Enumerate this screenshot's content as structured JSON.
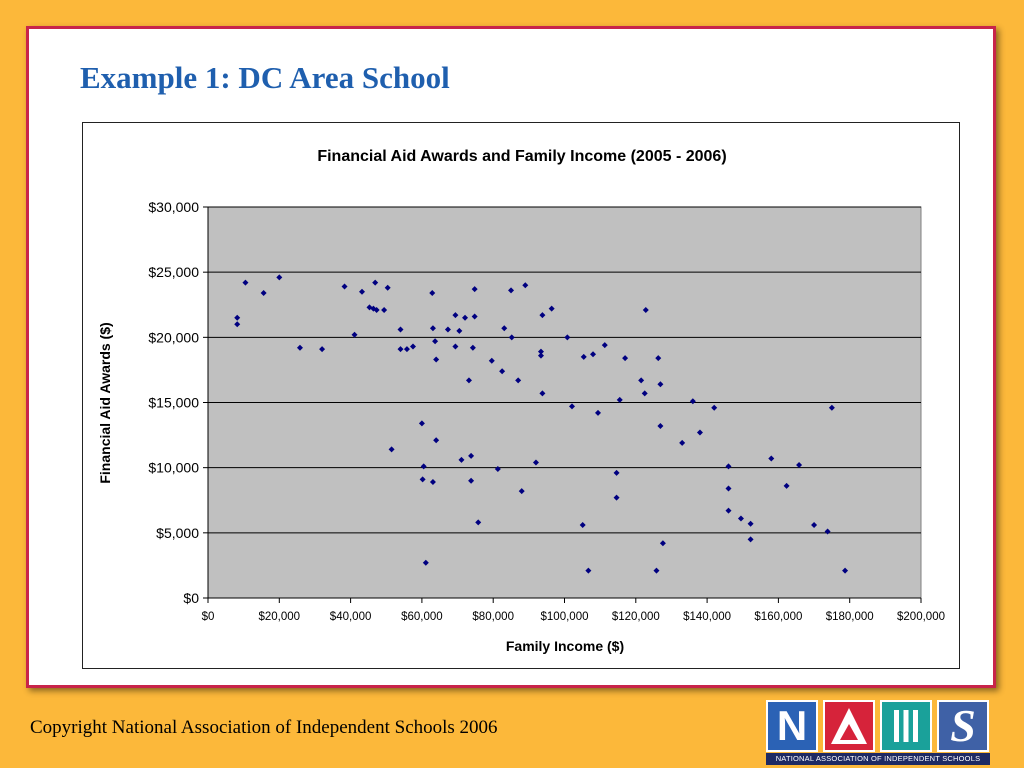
{
  "slide": {
    "title": "Example 1:  DC Area School",
    "footer": "Copyright National Association of Independent Schools 2006"
  },
  "logo": {
    "letters": [
      "N",
      "A",
      "I",
      "S"
    ],
    "tagline": "NATIONAL ASSOCIATION OF INDEPENDENT SCHOOLS",
    "colors": {
      "navy": "#1e2a63",
      "blue": "#2b62b5",
      "red": "#d6233a",
      "teal": "#1aa19a",
      "slate": "#3f61a6"
    }
  },
  "colors": {
    "background": "#fcb83a",
    "frame_border": "#c8244a",
    "title": "#1f5fae",
    "plot_area": "#c0c0c0",
    "marker": "#000080"
  },
  "chart_data": {
    "type": "scatter",
    "title": "Financial Aid Awards and Family Income (2005 - 2006)",
    "xlabel": "Family Income ($)",
    "ylabel": "Financial Aid Awards ($)",
    "xlim": [
      0,
      200000
    ],
    "ylim": [
      0,
      30000
    ],
    "x_ticks": [
      0,
      20000,
      40000,
      60000,
      80000,
      100000,
      120000,
      140000,
      160000,
      180000,
      200000
    ],
    "x_tick_labels": [
      "$0",
      "$20,000",
      "$40,000",
      "$60,000",
      "$80,000",
      "$100,000",
      "$120,000",
      "$140,000",
      "$160,000",
      "$180,000",
      "$200,000"
    ],
    "y_ticks": [
      0,
      5000,
      10000,
      15000,
      20000,
      25000,
      30000
    ],
    "y_tick_labels": [
      "$0",
      "$5,000",
      "$10,000",
      "$15,000",
      "$20,000",
      "$25,000",
      "$30,000"
    ],
    "grid": "horizontal",
    "legend": "none",
    "points": [
      [
        8200,
        21500
      ],
      [
        8200,
        21000
      ],
      [
        10500,
        24200
      ],
      [
        15600,
        23400
      ],
      [
        20000,
        24600
      ],
      [
        25800,
        19200
      ],
      [
        32000,
        19100
      ],
      [
        38300,
        23900
      ],
      [
        41100,
        20200
      ],
      [
        43200,
        23500
      ],
      [
        45300,
        22300
      ],
      [
        46400,
        22200
      ],
      [
        46900,
        24200
      ],
      [
        47300,
        22100
      ],
      [
        49400,
        22100
      ],
      [
        50400,
        23800
      ],
      [
        51500,
        11400
      ],
      [
        54000,
        19100
      ],
      [
        54000,
        20600
      ],
      [
        55800,
        19100
      ],
      [
        57500,
        19300
      ],
      [
        60000,
        13400
      ],
      [
        60200,
        9100
      ],
      [
        60500,
        10100
      ],
      [
        61100,
        2700
      ],
      [
        62900,
        23400
      ],
      [
        63100,
        20700
      ],
      [
        63100,
        8900
      ],
      [
        63700,
        19700
      ],
      [
        64000,
        18300
      ],
      [
        64000,
        12100
      ],
      [
        67300,
        20600
      ],
      [
        69400,
        21700
      ],
      [
        69400,
        19300
      ],
      [
        70500,
        20500
      ],
      [
        71100,
        10600
      ],
      [
        72100,
        21500
      ],
      [
        73200,
        16700
      ],
      [
        73800,
        10900
      ],
      [
        73800,
        9000
      ],
      [
        74300,
        19200
      ],
      [
        74800,
        21600
      ],
      [
        74800,
        23700
      ],
      [
        75800,
        5800
      ],
      [
        79600,
        18200
      ],
      [
        81300,
        9900
      ],
      [
        82500,
        17400
      ],
      [
        83100,
        20700
      ],
      [
        85000,
        23600
      ],
      [
        85200,
        20000
      ],
      [
        87000,
        16700
      ],
      [
        88000,
        8200
      ],
      [
        89000,
        24000
      ],
      [
        92000,
        10400
      ],
      [
        93400,
        18900
      ],
      [
        93400,
        18600
      ],
      [
        93800,
        15700
      ],
      [
        93800,
        21700
      ],
      [
        96400,
        22200
      ],
      [
        100800,
        20000
      ],
      [
        102100,
        14700
      ],
      [
        105100,
        5600
      ],
      [
        105400,
        18500
      ],
      [
        106700,
        2100
      ],
      [
        108000,
        18700
      ],
      [
        109400,
        14200
      ],
      [
        111300,
        19400
      ],
      [
        114600,
        7700
      ],
      [
        114600,
        9600
      ],
      [
        115500,
        15200
      ],
      [
        117000,
        18400
      ],
      [
        121500,
        16700
      ],
      [
        122500,
        15700
      ],
      [
        122800,
        22100
      ],
      [
        125800,
        2100
      ],
      [
        126300,
        18400
      ],
      [
        126900,
        13200
      ],
      [
        126900,
        16400
      ],
      [
        127600,
        4200
      ],
      [
        133000,
        11900
      ],
      [
        136000,
        15100
      ],
      [
        138000,
        12700
      ],
      [
        142000,
        14600
      ],
      [
        146000,
        10100
      ],
      [
        146000,
        8400
      ],
      [
        146000,
        6700
      ],
      [
        149500,
        6100
      ],
      [
        152200,
        5700
      ],
      [
        152200,
        4500
      ],
      [
        158000,
        10700
      ],
      [
        162300,
        8600
      ],
      [
        165800,
        10200
      ],
      [
        170000,
        5600
      ],
      [
        173800,
        5100
      ],
      [
        175000,
        14600
      ],
      [
        178700,
        2100
      ]
    ]
  }
}
